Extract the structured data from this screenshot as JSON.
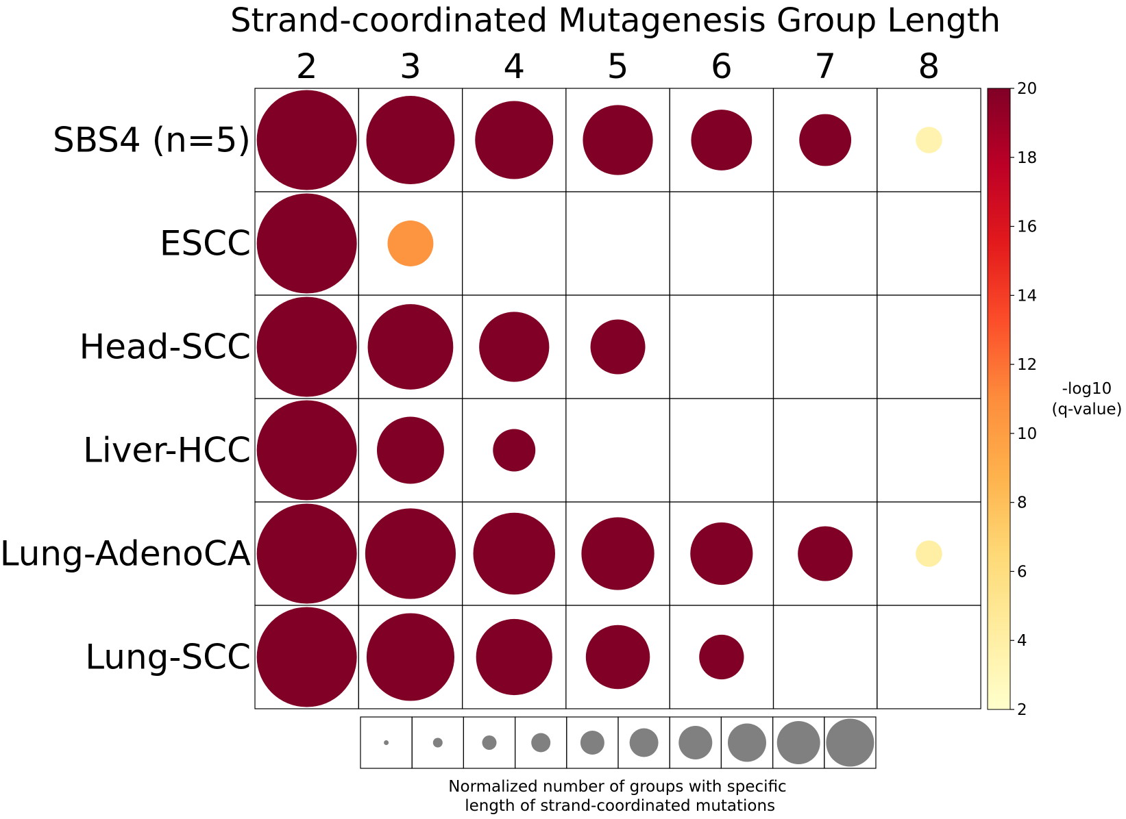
{
  "chart_data": {
    "type": "bubble-grid",
    "title": "Strand-coordinated Mutagenesis Group Length",
    "columns": [
      "2",
      "3",
      "4",
      "5",
      "6",
      "7",
      "8"
    ],
    "rows": [
      "SBS4 (n=5)",
      "ESCC",
      "Head-SCC",
      "Liver-HCC",
      "Lung-AdenoCA",
      "Lung-SCC"
    ],
    "size_values": [
      [
        1.0,
        0.78,
        0.61,
        0.49,
        0.37,
        0.27,
        0.07
      ],
      [
        1.0,
        0.21,
        null,
        null,
        null,
        null,
        null
      ],
      [
        1.0,
        0.73,
        0.49,
        0.3,
        null,
        null,
        null
      ],
      [
        1.0,
        0.45,
        0.18,
        null,
        null,
        null,
        null
      ],
      [
        1.0,
        0.82,
        0.67,
        0.53,
        0.39,
        0.3,
        0.07
      ],
      [
        1.0,
        0.77,
        0.58,
        0.41,
        0.2,
        null,
        null
      ]
    ],
    "neg_log10_q": [
      [
        20,
        20,
        20,
        20,
        20,
        20,
        3.5
      ],
      [
        20,
        10.5,
        null,
        null,
        null,
        null,
        null
      ],
      [
        20,
        20,
        20,
        20,
        null,
        null,
        null
      ],
      [
        20,
        20,
        20,
        null,
        null,
        null,
        null
      ],
      [
        20,
        20,
        20,
        20,
        20,
        20,
        4.0
      ],
      [
        20,
        20,
        20,
        20,
        20,
        null,
        null
      ]
    ],
    "colorbar": {
      "label": "-log10\n(q-value)",
      "range": [
        2,
        20
      ],
      "ticks": [
        2,
        4,
        6,
        8,
        10,
        12,
        14,
        16,
        18,
        20
      ],
      "colors": [
        "#ffffcc",
        "#ffeda0",
        "#fed976",
        "#feb24c",
        "#fd8d3c",
        "#fc4e2a",
        "#e31a1c",
        "#bd0026",
        "#800026"
      ]
    },
    "size_legend": {
      "values": [
        0.1,
        0.2,
        0.3,
        0.4,
        0.5,
        0.6,
        0.7,
        0.8,
        0.9,
        1.0
      ],
      "color": "#808080",
      "label": "Normalized number of groups with specific\n length of strand-coordinated mutations"
    }
  }
}
